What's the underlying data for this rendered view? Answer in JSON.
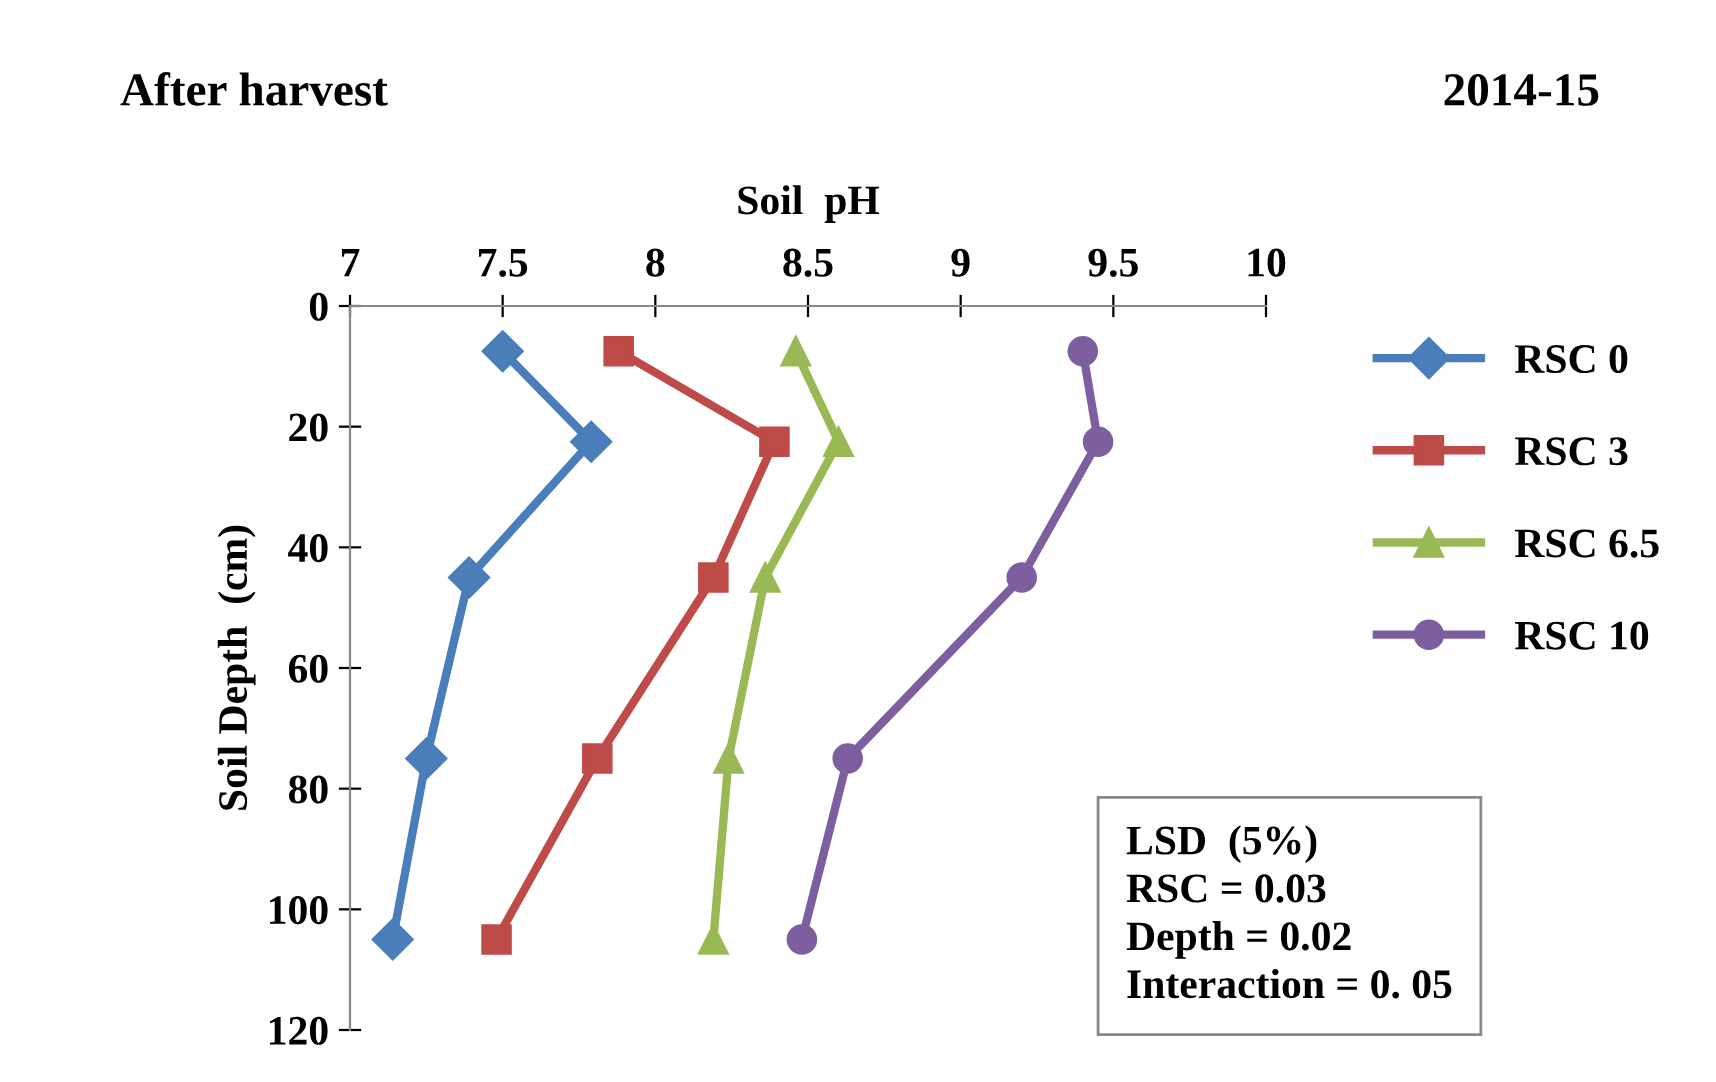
{
  "chart_data": {
    "type": "line",
    "xlabel": "Soil  pH",
    "ylabel": "Soil Depth  (cm)",
    "xlim": [
      7,
      10
    ],
    "xticks": [
      7,
      7.5,
      8,
      8.5,
      9,
      9.5,
      10
    ],
    "ylim": [
      120,
      0
    ],
    "yticks": [
      0,
      20,
      40,
      60,
      80,
      100,
      120
    ],
    "grid": false,
    "legend": "right",
    "series": [
      {
        "name": "RSC 0",
        "color": "#4a7ebb",
        "marker": "diamond",
        "x": [
          7.5,
          7.79,
          7.39,
          7.25,
          7.14
        ],
        "values": [
          7.5,
          22.5,
          45,
          75,
          105
        ]
      },
      {
        "name": "RSC 3",
        "color": "#be4b48",
        "marker": "square",
        "x": [
          7.88,
          8.39,
          8.19,
          7.81,
          7.48
        ],
        "values": [
          7.5,
          22.5,
          45,
          75,
          105
        ]
      },
      {
        "name": "RSC 6.5",
        "color": "#98b954",
        "marker": "triangle",
        "x": [
          8.46,
          8.6,
          8.36,
          8.24,
          8.19
        ],
        "values": [
          7.5,
          22.5,
          45,
          75,
          105
        ]
      },
      {
        "name": "RSC 10",
        "color": "#7d5fa0",
        "marker": "circle",
        "x": [
          9.4,
          9.45,
          9.2,
          8.63,
          8.48
        ],
        "values": [
          7.5,
          22.5,
          45,
          75,
          105
        ]
      }
    ],
    "annotations": [
      "After harvest",
      "2014-15",
      "LSD  (5%)\nRSC = 0.03\nDepth = 0.02\nInteraction = 0. 05"
    ]
  }
}
